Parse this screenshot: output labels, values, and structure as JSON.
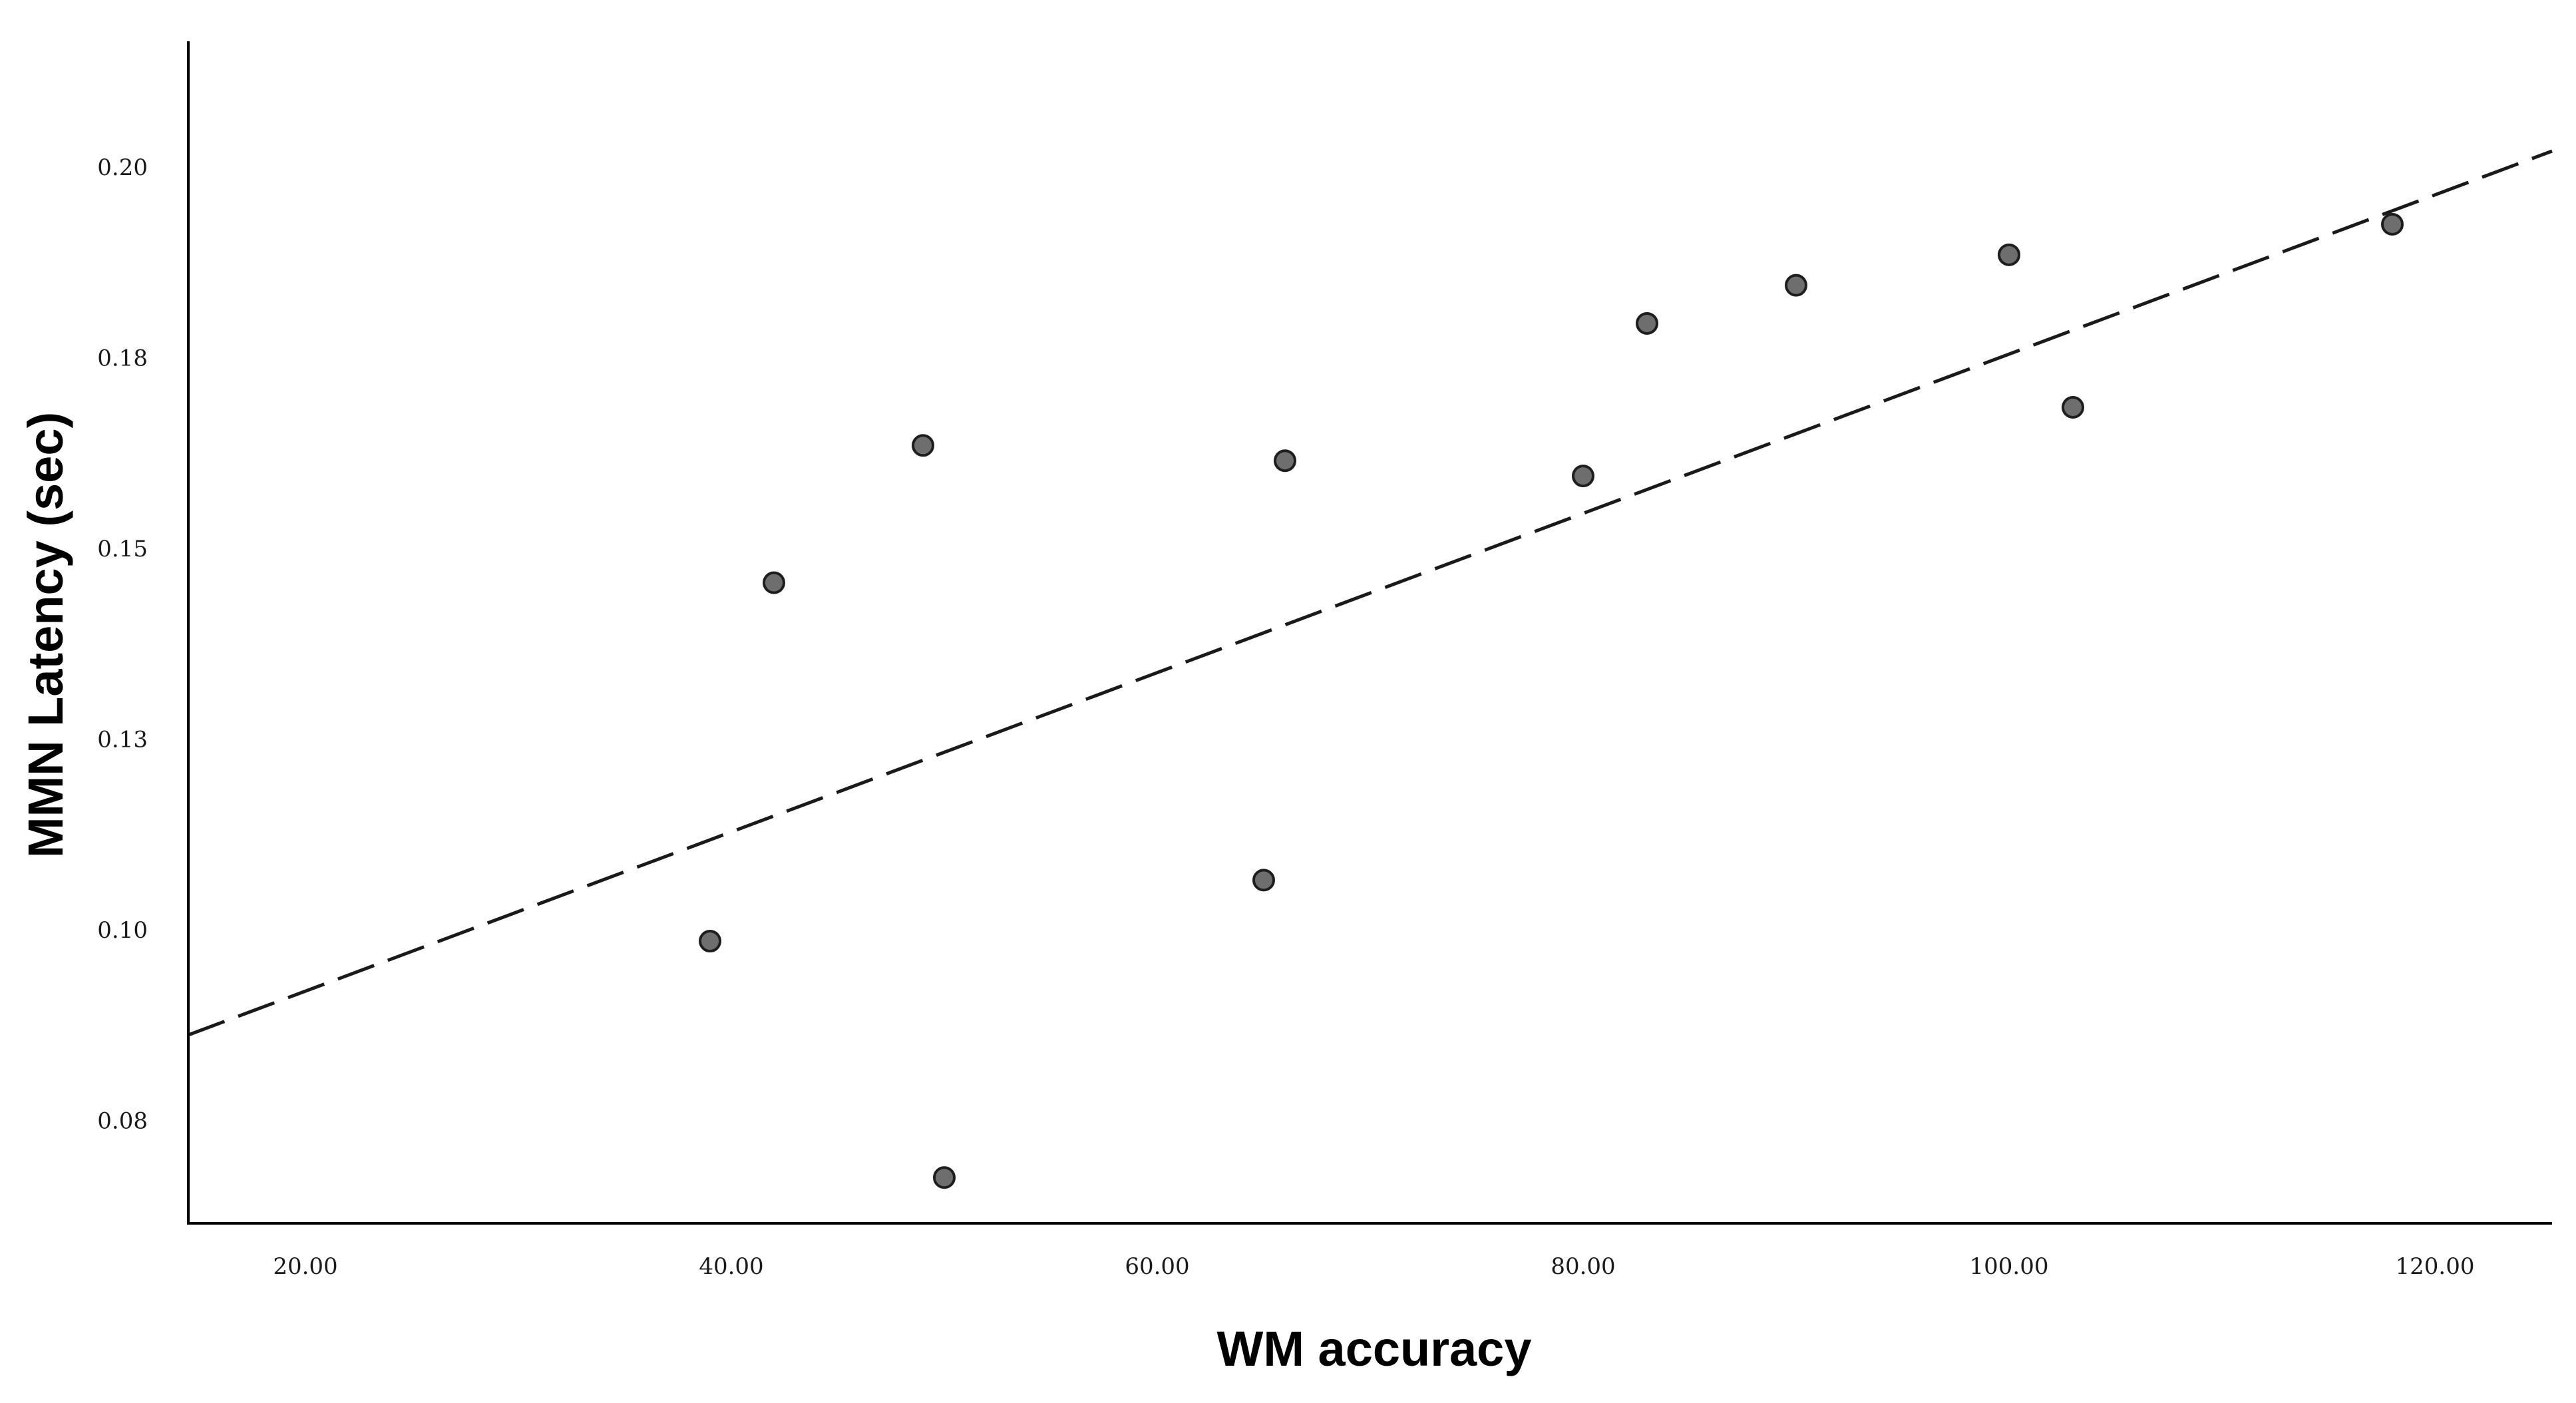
{
  "chart_data": {
    "type": "scatter",
    "title": "",
    "xlabel": "WM accuracy",
    "ylabel": "MMN Latency (sec)",
    "xlim": [
      14.5,
      125.5
    ],
    "ylim": [
      0.064,
      0.219
    ],
    "x_ticks": [
      20,
      40,
      60,
      80,
      100,
      120
    ],
    "x_tick_labels": [
      "20.00",
      "40.00",
      "60.00",
      "80.00",
      "100.00",
      "120.00"
    ],
    "y_ticks": [
      0.0775,
      0.1025,
      0.1275,
      0.1525,
      0.1775,
      0.2025
    ],
    "y_tick_labels": [
      "0.08",
      "0.10",
      "0.13",
      "0.15",
      "0.18",
      "0.20"
    ],
    "grid": false,
    "legend": "none",
    "points": [
      {
        "x": 39,
        "y": 0.101
      },
      {
        "x": 42,
        "y": 0.148
      },
      {
        "x": 49,
        "y": 0.166
      },
      {
        "x": 50,
        "y": 0.07
      },
      {
        "x": 65,
        "y": 0.109
      },
      {
        "x": 66,
        "y": 0.164
      },
      {
        "x": 80,
        "y": 0.162
      },
      {
        "x": 83,
        "y": 0.182
      },
      {
        "x": 90,
        "y": 0.187
      },
      {
        "x": 100,
        "y": 0.191
      },
      {
        "x": 103,
        "y": 0.171
      },
      {
        "x": 118,
        "y": 0.195
      }
    ],
    "fit_line": {
      "style": "dashed",
      "x": [
        14.5,
        125.5
      ],
      "y": [
        0.0887,
        0.2046
      ]
    },
    "colors": {
      "marker_fill": "#6e6e6e",
      "marker_stroke": "#1e1e1e",
      "axis": "#000000",
      "fit_line": "#1a1a1a"
    }
  }
}
